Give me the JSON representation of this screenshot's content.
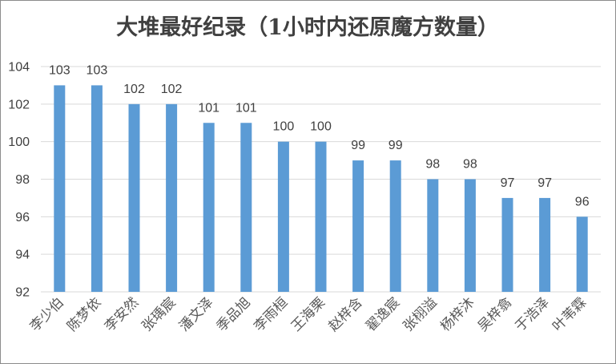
{
  "chart_data": {
    "type": "bar",
    "title": "大堆最好纪录（1小时内还原魔方数量）",
    "xlabel": "",
    "ylabel": "",
    "categories": [
      "李少伯",
      "陈梦依",
      "李安然",
      "张瑀宸",
      "潘文泽",
      "季品旭",
      "李雨桓",
      "王海栗",
      "赵梓含",
      "翟逸宸",
      "张栩溢",
      "杨梓沐",
      "吴梓翕",
      "于浩泽",
      "叶苇霖"
    ],
    "values": [
      103,
      103,
      102,
      102,
      101,
      101,
      100,
      100,
      99,
      99,
      98,
      98,
      97,
      97,
      96
    ],
    "ylim": [
      92,
      104
    ],
    "yticks": [
      92,
      94,
      96,
      98,
      100,
      102,
      104
    ],
    "grid": true,
    "legend": "none",
    "bar_color": "#5b9bd5",
    "grid_color": "#d9d9d9"
  }
}
